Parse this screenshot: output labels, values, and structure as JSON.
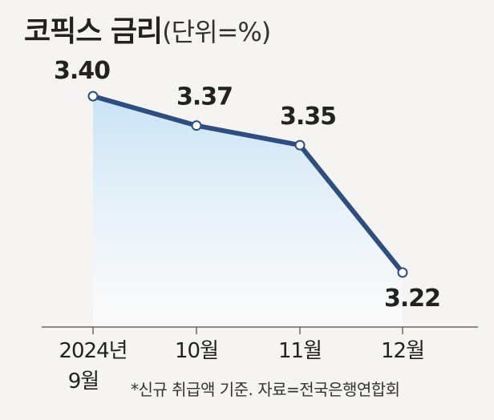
{
  "chart_data": {
    "type": "line",
    "title": "코픽스 금리",
    "unit_label": "(단위=%)",
    "categories": [
      "2024년 9월",
      "10월",
      "11월",
      "12월"
    ],
    "category_lines": [
      [
        "2024년",
        "9월"
      ],
      [
        "10월"
      ],
      [
        "11월"
      ],
      [
        "12월"
      ]
    ],
    "values": [
      3.4,
      3.37,
      3.35,
      3.22
    ],
    "value_labels": [
      "3.40",
      "3.37",
      "3.35",
      "3.22"
    ],
    "ylim": [
      3.15,
      3.44
    ],
    "grid": false,
    "legend": "none",
    "colors": {
      "line": "#2e4e80",
      "marker_fill": "#ffffff",
      "area_top": "#c9e3f5",
      "area_bottom": "#ffffff",
      "axis": "#666666"
    }
  },
  "footnote": "*신규 취급액 기준. 자료=전국은행연합회"
}
